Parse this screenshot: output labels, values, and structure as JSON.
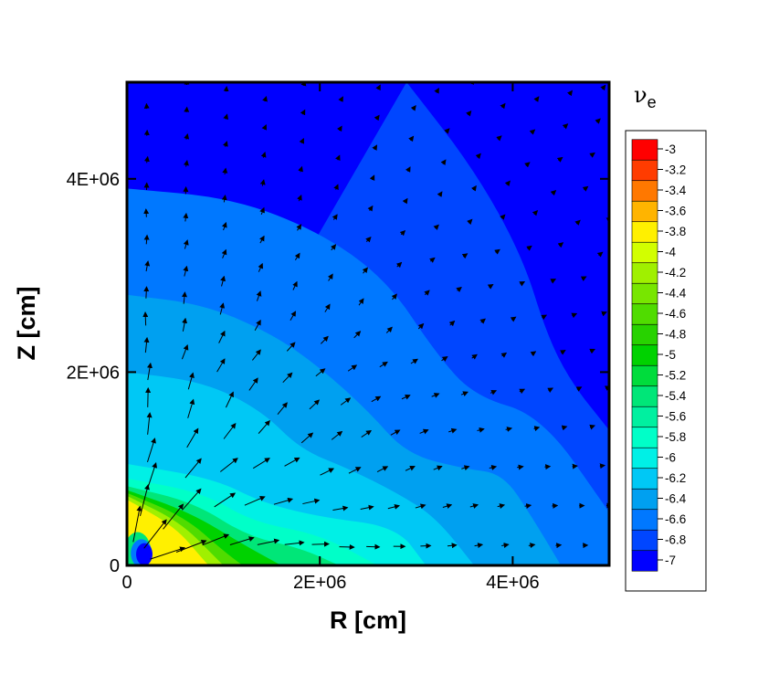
{
  "chart_data": {
    "type": "heatmap",
    "title": "",
    "xlabel": "R [cm]",
    "ylabel": "Z [cm]",
    "xlim": [
      0,
      5000000
    ],
    "ylim": [
      0,
      5000000
    ],
    "x_ticks": [
      {
        "value": 0,
        "label": "0"
      },
      {
        "value": 2000000,
        "label": "2E+06"
      },
      {
        "value": 4000000,
        "label": "4E+06"
      }
    ],
    "y_ticks": [
      {
        "value": 0,
        "label": "0"
      },
      {
        "value": 2000000,
        "label": "2E+06"
      },
      {
        "value": 4000000,
        "label": "4E+06"
      }
    ],
    "colorbar": {
      "title_symbol": "ν",
      "title_subscript": "e",
      "levels": [
        {
          "label": "-3",
          "color": "#ff0000"
        },
        {
          "label": "-3.2",
          "color": "#ff3c00"
        },
        {
          "label": "-3.4",
          "color": "#ff7800"
        },
        {
          "label": "-3.6",
          "color": "#ffb400"
        },
        {
          "label": "-3.8",
          "color": "#fff000"
        },
        {
          "label": "-4",
          "color": "#d2ff00"
        },
        {
          "label": "-4.2",
          "color": "#a0f000"
        },
        {
          "label": "-4.4",
          "color": "#78e600"
        },
        {
          "label": "-4.6",
          "color": "#50dc00"
        },
        {
          "label": "-4.8",
          "color": "#28d200"
        },
        {
          "label": "-5",
          "color": "#00d200"
        },
        {
          "label": "-5.2",
          "color": "#00dc3c"
        },
        {
          "label": "-5.4",
          "color": "#00e678"
        },
        {
          "label": "-5.6",
          "color": "#00f0a0"
        },
        {
          "label": "-5.8",
          "color": "#00ffc8"
        },
        {
          "label": "-6",
          "color": "#00f0e6"
        },
        {
          "label": "-6.2",
          "color": "#00c8f5"
        },
        {
          "label": "-6.4",
          "color": "#00a0f0"
        },
        {
          "label": "-6.6",
          "color": "#0078ff"
        },
        {
          "label": "-6.8",
          "color": "#0046ff"
        },
        {
          "label": "-7",
          "color": "#0000ff"
        }
      ]
    },
    "contour_boundaries": [
      {
        "level": "-6.8",
        "points": [
          [
            2900000.0,
            5000000.0
          ],
          [
            3600000.0,
            4100000.0
          ],
          [
            4100000.0,
            3200000.0
          ],
          [
            4350000.0,
            2400000.0
          ],
          [
            4600000.0,
            1900000.0
          ],
          [
            5000000.0,
            1400000.0
          ]
        ]
      },
      {
        "level": "-6.6",
        "points": [
          [
            0,
            3900000.0
          ],
          [
            1100000.0,
            3800000.0
          ],
          [
            2000000.0,
            3450000.0
          ],
          [
            2700000.0,
            2950000.0
          ],
          [
            3200000.0,
            2200000.0
          ],
          [
            3600000.0,
            1750000.0
          ],
          [
            4300000.0,
            1550000.0
          ],
          [
            5000000.0,
            550000.0
          ]
        ]
      },
      {
        "level": "-6.4",
        "points": [
          [
            0,
            2800000.0
          ],
          [
            800000.0,
            2700000.0
          ],
          [
            1500000.0,
            2400000.0
          ],
          [
            2000000.0,
            2050000.0
          ],
          [
            2500000.0,
            1600000.0
          ],
          [
            2900000.0,
            1150000.0
          ],
          [
            3500000.0,
            1000000.0
          ],
          [
            3900000.0,
            950000.0
          ],
          [
            4200000.0,
            500000.0
          ],
          [
            4500000.0,
            0
          ]
        ]
      },
      {
        "level": "-6.2",
        "points": [
          [
            0,
            2000000.0
          ],
          [
            800000.0,
            1900000.0
          ],
          [
            1400000.0,
            1600000.0
          ],
          [
            1800000.0,
            1200000.0
          ],
          [
            2300000.0,
            1000000.0
          ],
          [
            2800000.0,
            750000.0
          ],
          [
            3200000.0,
            500000.0
          ],
          [
            3600000.0,
            0
          ]
        ]
      },
      {
        "level": "-6",
        "points": [
          [
            0,
            1050000.0
          ],
          [
            900000.0,
            900000.0
          ],
          [
            1400000.0,
            650000.0
          ],
          [
            2000000.0,
            500000.0
          ],
          [
            2800000.0,
            400000.0
          ],
          [
            3100000.0,
            0
          ]
        ]
      },
      {
        "level": "-5.8",
        "points": [
          [
            0,
            900000.0
          ],
          [
            800000.0,
            750000.0
          ],
          [
            1300000.0,
            450000.0
          ],
          [
            2000000.0,
            320000.0
          ],
          [
            2600000.0,
            0
          ]
        ]
      },
      {
        "level": "-5.4",
        "points": [
          [
            0,
            820000.0
          ],
          [
            700000.0,
            650000.0
          ],
          [
            1250000.0,
            300000.0
          ],
          [
            1800000.0,
            180000.0
          ],
          [
            2200000.0,
            0
          ]
        ]
      },
      {
        "level": "-5",
        "points": [
          [
            0,
            780000.0
          ],
          [
            650000.0,
            550000.0
          ],
          [
            1200000.0,
            220000.0
          ],
          [
            1600000.0,
            0
          ]
        ]
      },
      {
        "level": "-4.6",
        "points": [
          [
            0,
            750000.0
          ],
          [
            600000.0,
            500000.0
          ],
          [
            1000000.0,
            150000.0
          ],
          [
            1200000.0,
            0
          ]
        ]
      },
      {
        "level": "-4.2",
        "points": [
          [
            0,
            720000.0
          ],
          [
            550000.0,
            450000.0
          ],
          [
            900000.0,
            100000.0
          ],
          [
            1000000.0,
            0
          ]
        ]
      },
      {
        "level": "-3.8",
        "points": [
          [
            0,
            680000.0
          ],
          [
            500000.0,
            400000.0
          ],
          [
            800000.0,
            50000.0
          ],
          [
            850000.0,
            0
          ]
        ]
      }
    ],
    "inner_spots": [
      {
        "level": "-5.4",
        "x": 110000.0,
        "y": 135000.0,
        "rx": 140000.0,
        "ry": 210000.0
      },
      {
        "level": "-6.6",
        "x": 150000.0,
        "y": 125000.0,
        "rx": 110000.0,
        "ry": 145000.0
      },
      {
        "level": "-7",
        "x": 180000.0,
        "y": 115000.0,
        "rx": 85000.0,
        "ry": 115000.0
      }
    ],
    "vector_field": "outflow velocity arrows radiating from the origin",
    "grid": false
  }
}
